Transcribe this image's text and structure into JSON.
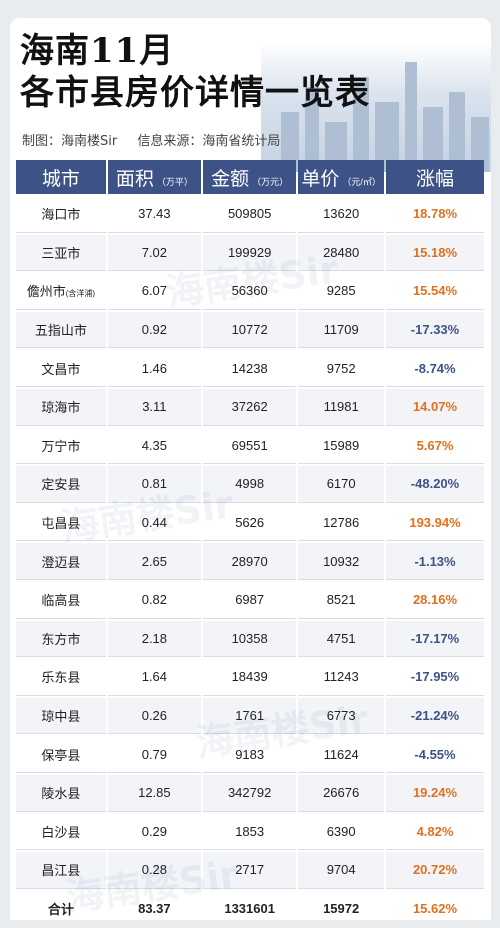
{
  "title": {
    "line1": "海南11月",
    "line2": "各市县房价详情一览表"
  },
  "credit": {
    "author": "制图：海南楼Sir",
    "source": "信息来源：海南省统计局"
  },
  "watermark": "海南楼Sir",
  "colors": {
    "header_bg": "#3d5287",
    "rise": "#e2701e",
    "fall": "#3d5287"
  },
  "table": {
    "headers": [
      {
        "label": "城市",
        "unit": ""
      },
      {
        "label": "面积",
        "unit": "（万平）"
      },
      {
        "label": "金额",
        "unit": "（万元）"
      },
      {
        "label": "单价",
        "unit": "（元/㎡）"
      },
      {
        "label": "涨幅",
        "unit": ""
      }
    ],
    "rows": [
      {
        "city": "海口市",
        "sub": "",
        "area": "37.43",
        "amount": "509805",
        "price": "13620",
        "change": "18.78%",
        "dir": "up"
      },
      {
        "city": "三亚市",
        "sub": "",
        "area": "7.02",
        "amount": "199929",
        "price": "28480",
        "change": "15.18%",
        "dir": "up"
      },
      {
        "city": "儋州市",
        "sub": "(含洋浦)",
        "area": "6.07",
        "amount": "56360",
        "price": "9285",
        "change": "15.54%",
        "dir": "up"
      },
      {
        "city": "五指山市",
        "sub": "",
        "area": "0.92",
        "amount": "10772",
        "price": "11709",
        "change": "-17.33%",
        "dir": "down"
      },
      {
        "city": "文昌市",
        "sub": "",
        "area": "1.46",
        "amount": "14238",
        "price": "9752",
        "change": "-8.74%",
        "dir": "down"
      },
      {
        "city": "琼海市",
        "sub": "",
        "area": "3.11",
        "amount": "37262",
        "price": "11981",
        "change": "14.07%",
        "dir": "up"
      },
      {
        "city": "万宁市",
        "sub": "",
        "area": "4.35",
        "amount": "69551",
        "price": "15989",
        "change": "5.67%",
        "dir": "up"
      },
      {
        "city": "定安县",
        "sub": "",
        "area": "0.81",
        "amount": "4998",
        "price": "6170",
        "change": "-48.20%",
        "dir": "down"
      },
      {
        "city": "屯昌县",
        "sub": "",
        "area": "0.44",
        "amount": "5626",
        "price": "12786",
        "change": "193.94%",
        "dir": "up"
      },
      {
        "city": "澄迈县",
        "sub": "",
        "area": "2.65",
        "amount": "28970",
        "price": "10932",
        "change": "-1.13%",
        "dir": "down"
      },
      {
        "city": "临高县",
        "sub": "",
        "area": "0.82",
        "amount": "6987",
        "price": "8521",
        "change": "28.16%",
        "dir": "up"
      },
      {
        "city": "东方市",
        "sub": "",
        "area": "2.18",
        "amount": "10358",
        "price": "4751",
        "change": "-17.17%",
        "dir": "down"
      },
      {
        "city": "乐东县",
        "sub": "",
        "area": "1.64",
        "amount": "18439",
        "price": "11243",
        "change": "-17.95%",
        "dir": "down"
      },
      {
        "city": "琼中县",
        "sub": "",
        "area": "0.26",
        "amount": "1761",
        "price": "6773",
        "change": "-21.24%",
        "dir": "down"
      },
      {
        "city": "保亭县",
        "sub": "",
        "area": "0.79",
        "amount": "9183",
        "price": "11624",
        "change": "-4.55%",
        "dir": "down"
      },
      {
        "city": "陵水县",
        "sub": "",
        "area": "12.85",
        "amount": "342792",
        "price": "26676",
        "change": "19.24%",
        "dir": "up"
      },
      {
        "city": "白沙县",
        "sub": "",
        "area": "0.29",
        "amount": "1853",
        "price": "6390",
        "change": "4.82%",
        "dir": "up"
      },
      {
        "city": "昌江县",
        "sub": "",
        "area": "0.28",
        "amount": "2717",
        "price": "9704",
        "change": "20.72%",
        "dir": "up"
      }
    ],
    "total": {
      "city": "合计",
      "area": "83.37",
      "amount": "1331601",
      "price": "15972",
      "change": "15.62%",
      "dir": "up"
    }
  }
}
